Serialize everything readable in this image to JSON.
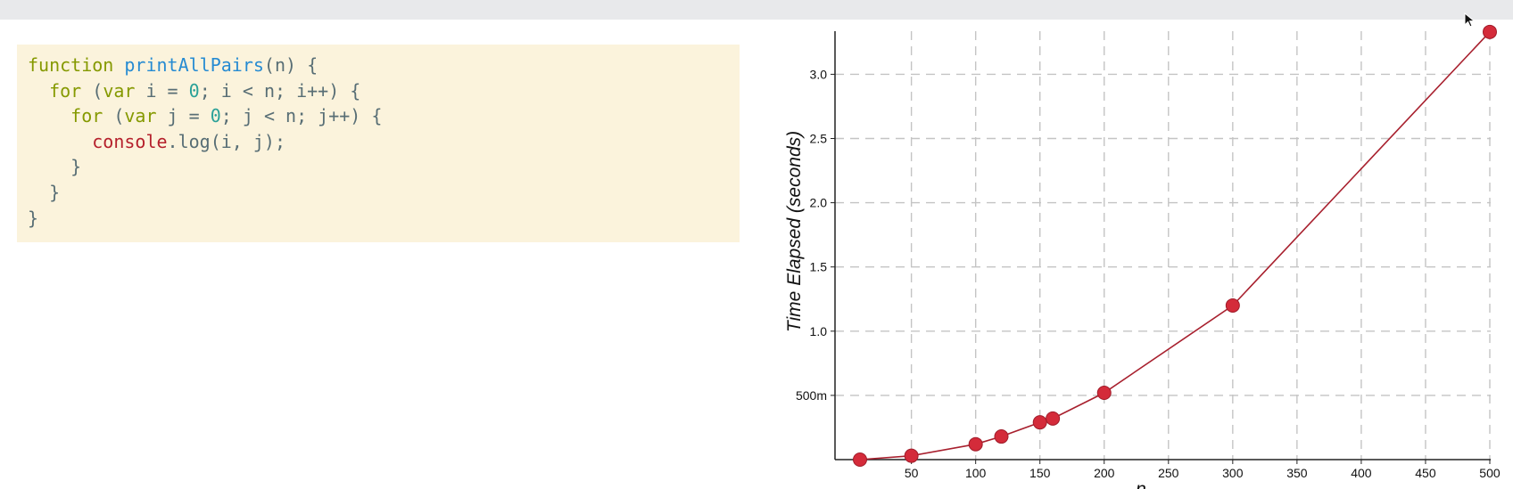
{
  "code": {
    "line1": {
      "keyword": "function",
      "name": "printAllPairs",
      "rest": "(n) {"
    },
    "line2": {
      "keyword_for": "for",
      "open": " (",
      "keyword_var": "var",
      "mid": " i = ",
      "zero": "0",
      "rest": "; i < n; i++) {"
    },
    "line3": {
      "keyword_for": "for",
      "open": " (",
      "keyword_var": "var",
      "mid": " j = ",
      "zero": "0",
      "rest": "; j < n; j++) {"
    },
    "line4": {
      "object": "console",
      "rest": ".log(i, j);"
    },
    "line5": "}",
    "line6": "}",
    "line7": "}"
  },
  "colors": {
    "code_background": "#fbf3dc",
    "keyword": "#859900",
    "function_name": "#268bd2",
    "number": "#2aa198",
    "object": "#b5202c",
    "series": "#d42b3a",
    "series_line": "#a8202e"
  },
  "chart_data": {
    "type": "line",
    "title": "",
    "xlabel": "n",
    "ylabel": "Time Elapsed (seconds)",
    "xlim": [
      0,
      500
    ],
    "ylim": [
      0,
      3.35
    ],
    "x_ticks": [
      50,
      100,
      150,
      200,
      250,
      300,
      350,
      400,
      450,
      500
    ],
    "y_ticks": [
      {
        "value": 0.5,
        "label": "500m"
      },
      {
        "value": 1.0,
        "label": "1.0"
      },
      {
        "value": 1.5,
        "label": "1.5"
      },
      {
        "value": 2.0,
        "label": "2.0"
      },
      {
        "value": 2.5,
        "label": "2.5"
      },
      {
        "value": 3.0,
        "label": "3.0"
      }
    ],
    "grid": true,
    "grid_style": "dashed",
    "x": [
      10,
      50,
      100,
      120,
      150,
      160,
      200,
      300,
      500
    ],
    "values": [
      0.0,
      0.03,
      0.12,
      0.18,
      0.29,
      0.32,
      0.52,
      1.2,
      3.33
    ]
  }
}
